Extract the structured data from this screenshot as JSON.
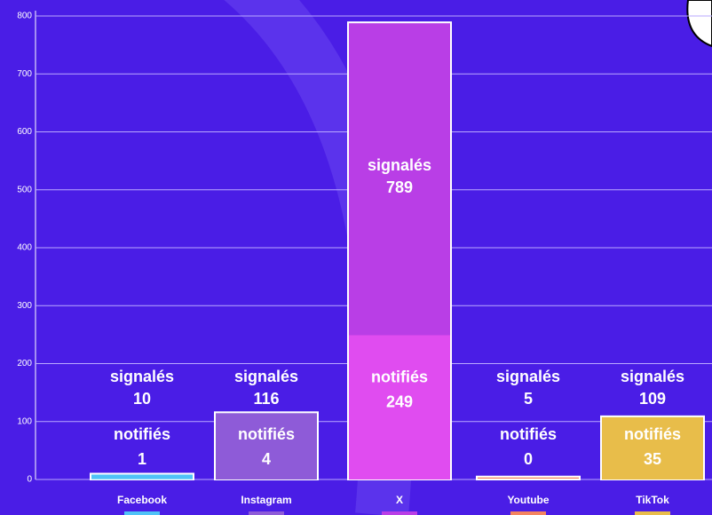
{
  "chart_data": {
    "type": "bar",
    "categories": [
      "Facebook",
      "Instagram",
      "X",
      "Youtube",
      "TikTok"
    ],
    "series": [
      {
        "name": "signalés",
        "colors": [
          "#4fc3f7",
          "#8e5bd8",
          "#b93ee6",
          "#f4845f",
          "#e8bd4a"
        ],
        "values": [
          10,
          116,
          789,
          5,
          109
        ]
      },
      {
        "name": "notifiés",
        "colors": [
          "#4fc3f7",
          "#8e5bd8",
          "#e04cf0",
          "#f4845f",
          "#e8bd4a"
        ],
        "values": [
          1,
          4,
          249,
          0,
          35
        ]
      }
    ],
    "ylim": [
      0,
      800
    ],
    "yticks": [
      0,
      100,
      200,
      300,
      400,
      500,
      600,
      700,
      800
    ],
    "grid": true
  }
}
